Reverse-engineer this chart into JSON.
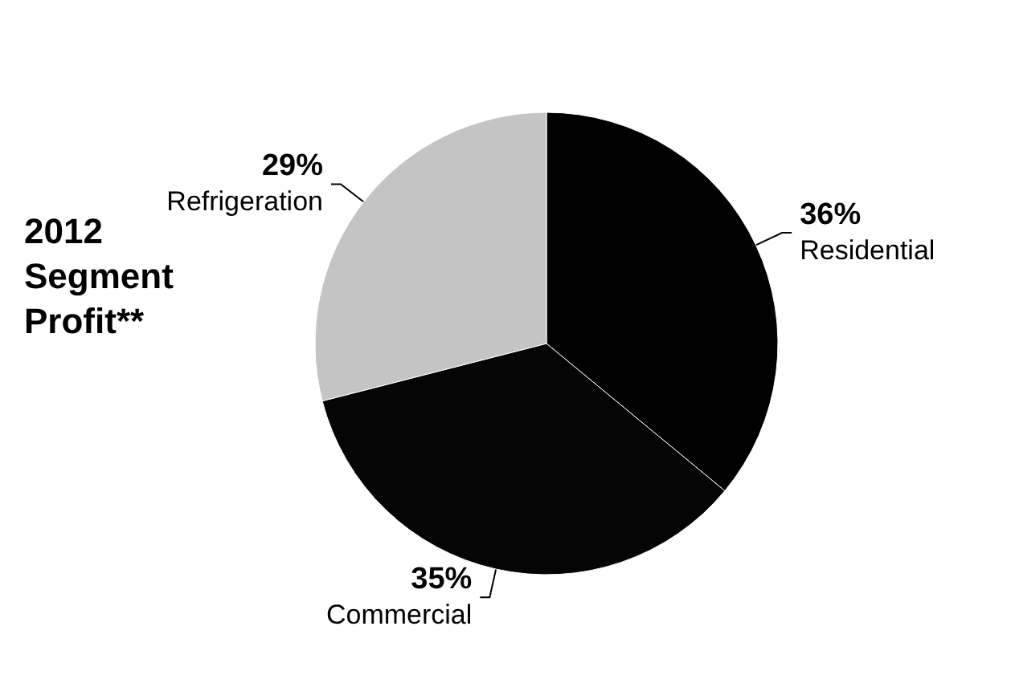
{
  "chart_data": {
    "type": "pie",
    "title": "2012 Segment Profit**",
    "categories": [
      "Residential",
      "Commercial",
      "Refrigeration"
    ],
    "values": [
      36,
      35,
      29
    ],
    "colors": [
      "#000000",
      "#050505",
      "#c4c4c4"
    ],
    "value_labels": [
      "36%",
      "35%",
      "29%"
    ],
    "legend": false
  }
}
